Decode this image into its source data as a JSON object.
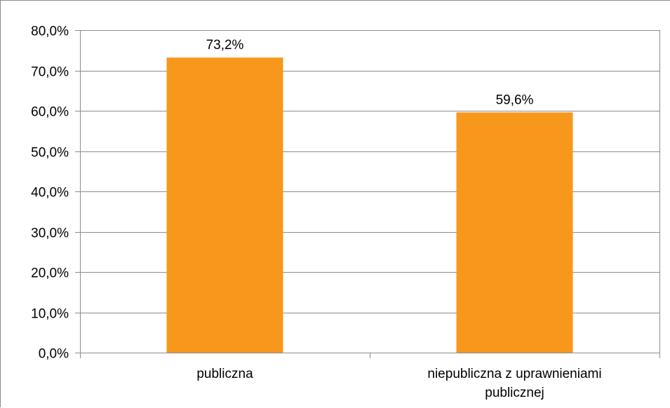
{
  "chart_data": {
    "type": "bar",
    "categories": [
      [
        "publiczna"
      ],
      [
        "niepubliczna z uprawnieniami",
        "publicznej"
      ]
    ],
    "values": [
      73.2,
      59.6
    ],
    "value_labels": [
      "73,2%",
      "59,6%"
    ],
    "title": "",
    "xlabel": "",
    "ylabel": "",
    "ylim": [
      0,
      80
    ],
    "yticks": [
      0,
      10,
      20,
      30,
      40,
      50,
      60,
      70,
      80
    ],
    "ytick_labels": [
      "0,0%",
      "10,0%",
      "20,0%",
      "30,0%",
      "40,0%",
      "50,0%",
      "60,0%",
      "70,0%",
      "80,0%"
    ],
    "grid": true,
    "legend": "none",
    "bar_color": "#f7981d",
    "grid_color": "#8c8c8c"
  }
}
